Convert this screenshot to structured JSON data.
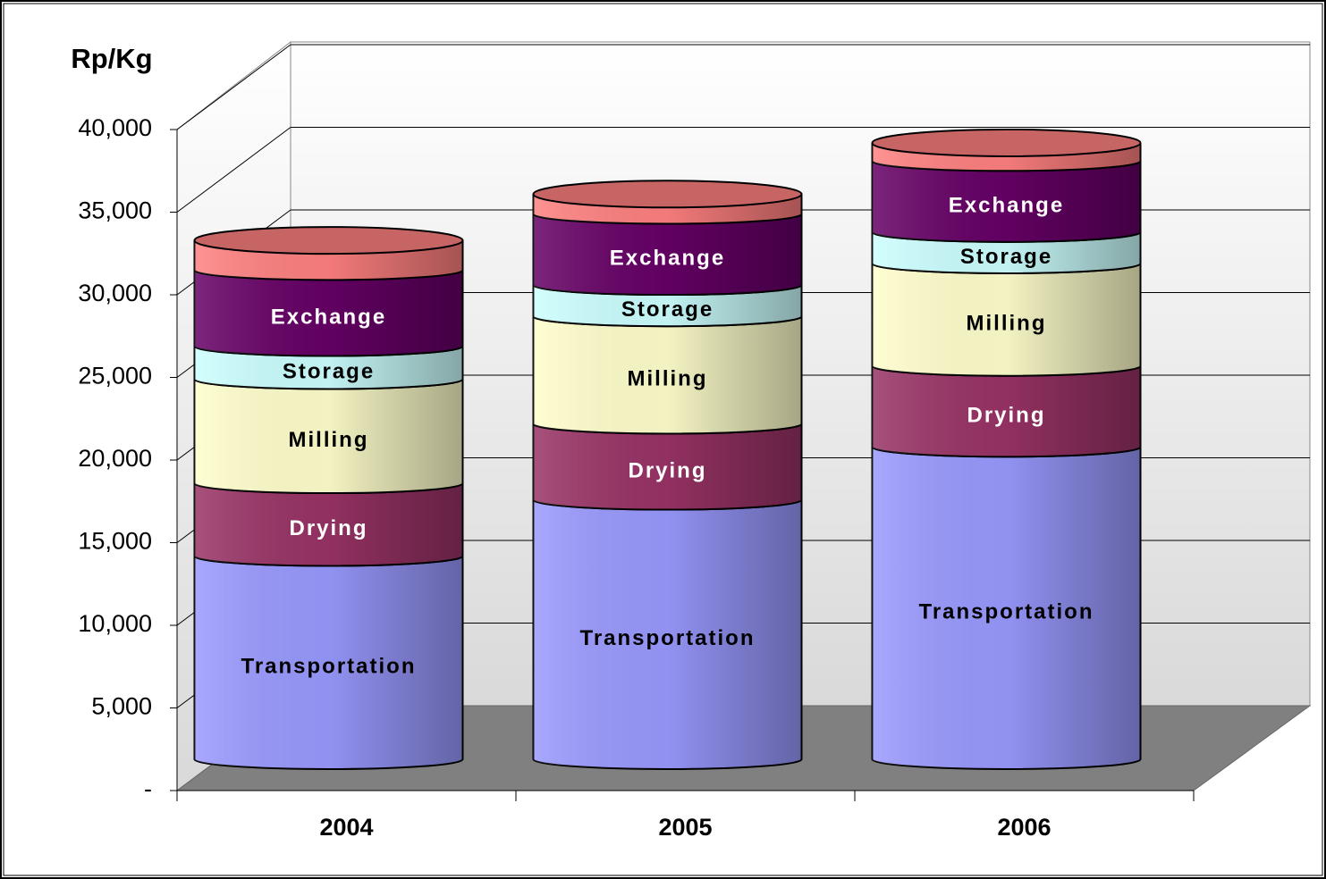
{
  "chart_data": {
    "type": "stacked-cylinder",
    "title": "Rp/Kg",
    "categories": [
      "2004",
      "2005",
      "2006"
    ],
    "series": [
      {
        "name": "Transportation",
        "color": "#9999ff",
        "values": [
          12300,
          15700,
          18900
        ]
      },
      {
        "name": "Drying",
        "color": "#993366",
        "values": [
          4400,
          4600,
          4900
        ]
      },
      {
        "name": "Milling",
        "color": "#ffffcc",
        "values": [
          6300,
          6500,
          6200
        ]
      },
      {
        "name": "Storage",
        "color": "#ccffff",
        "values": [
          2000,
          1900,
          1900
        ]
      },
      {
        "name": "Exchange",
        "color": "#660066",
        "values": [
          4600,
          4300,
          4300
        ]
      },
      {
        "color": "#ff8080",
        "values": [
          1800,
          1200,
          1100
        ]
      }
    ],
    "ylim": [
      0,
      40000
    ],
    "yticks": [
      {
        "value": 0,
        "label": "-"
      },
      {
        "value": 5000,
        "label": "5,000"
      },
      {
        "value": 10000,
        "label": "10,000"
      },
      {
        "value": 15000,
        "label": "15,000"
      },
      {
        "value": 20000,
        "label": "20,000"
      },
      {
        "value": 25000,
        "label": "25,000"
      },
      {
        "value": 30000,
        "label": "30,000"
      },
      {
        "value": 35000,
        "label": "35,000"
      },
      {
        "value": 40000,
        "label": "40,000"
      }
    ],
    "grid": true
  }
}
